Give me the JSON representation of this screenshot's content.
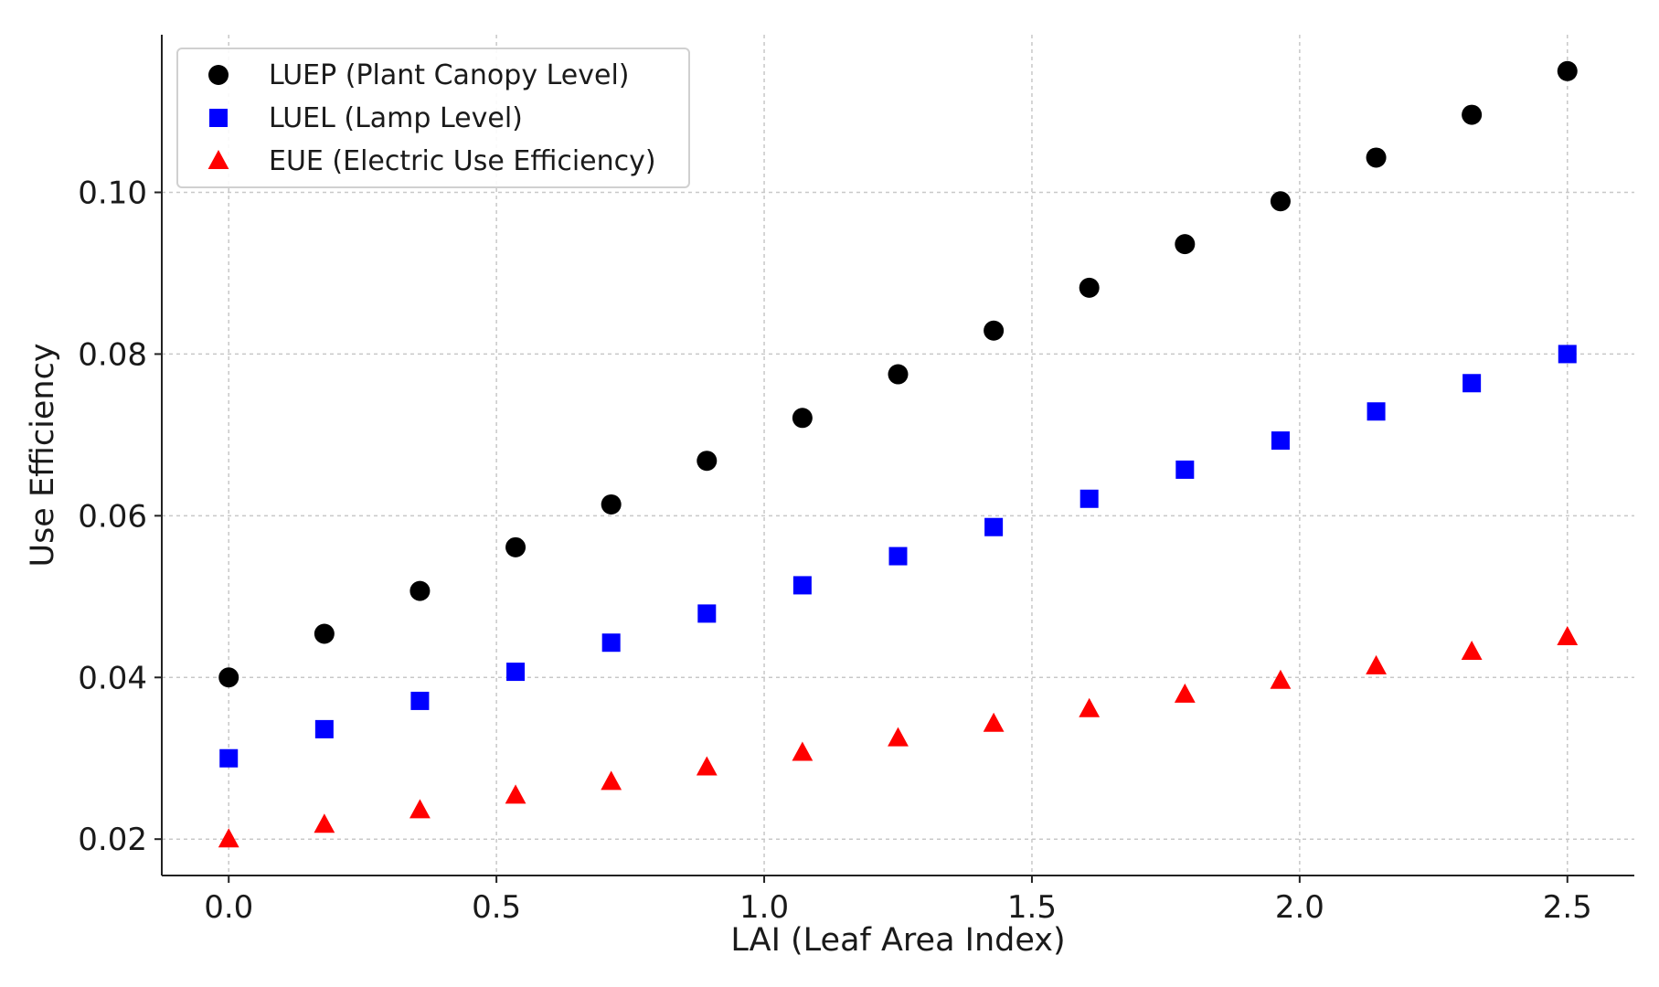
{
  "chart_data": {
    "type": "scatter",
    "title": "",
    "xlabel": "LAI (Leaf Area Index)",
    "ylabel": "Use Efficiency",
    "xlim": [
      -0.125,
      2.625
    ],
    "ylim": [
      0.0155,
      0.1195
    ],
    "xticks": [
      0.0,
      0.5,
      1.0,
      1.5,
      2.0,
      2.5
    ],
    "xtick_labels": [
      "0.0",
      "0.5",
      "1.0",
      "1.5",
      "2.0",
      "2.5"
    ],
    "yticks": [
      0.02,
      0.04,
      0.06,
      0.08,
      0.1
    ],
    "ytick_labels": [
      "0.02",
      "0.04",
      "0.06",
      "0.08",
      "0.10"
    ],
    "grid": true,
    "legend_position": "top-left",
    "x": [
      0.0,
      0.1786,
      0.3571,
      0.5357,
      0.7143,
      0.8929,
      1.0714,
      1.25,
      1.4286,
      1.6071,
      1.7857,
      1.9643,
      2.1429,
      2.3214,
      2.5
    ],
    "series": [
      {
        "name": "LUEP (Plant Canopy Level)",
        "marker": "circle",
        "color": "#000000",
        "values": [
          0.04,
          0.0454,
          0.0507,
          0.0561,
          0.0614,
          0.0668,
          0.0721,
          0.0775,
          0.0829,
          0.0882,
          0.0936,
          0.0989,
          0.1043,
          0.1096,
          0.115
        ]
      },
      {
        "name": "LUEL (Lamp Level)",
        "marker": "square",
        "color": "#0000ff",
        "values": [
          0.03,
          0.0336,
          0.0371,
          0.0407,
          0.0443,
          0.0479,
          0.0514,
          0.055,
          0.0586,
          0.0621,
          0.0657,
          0.0693,
          0.0729,
          0.0764,
          0.08
        ]
      },
      {
        "name": "EUE (Electric Use Efficiency)",
        "marker": "triangle",
        "color": "#ff0000",
        "values": [
          0.02,
          0.0218,
          0.0236,
          0.0254,
          0.0271,
          0.0289,
          0.0307,
          0.0325,
          0.0343,
          0.0361,
          0.0379,
          0.0396,
          0.0414,
          0.0432,
          0.045
        ]
      }
    ]
  }
}
